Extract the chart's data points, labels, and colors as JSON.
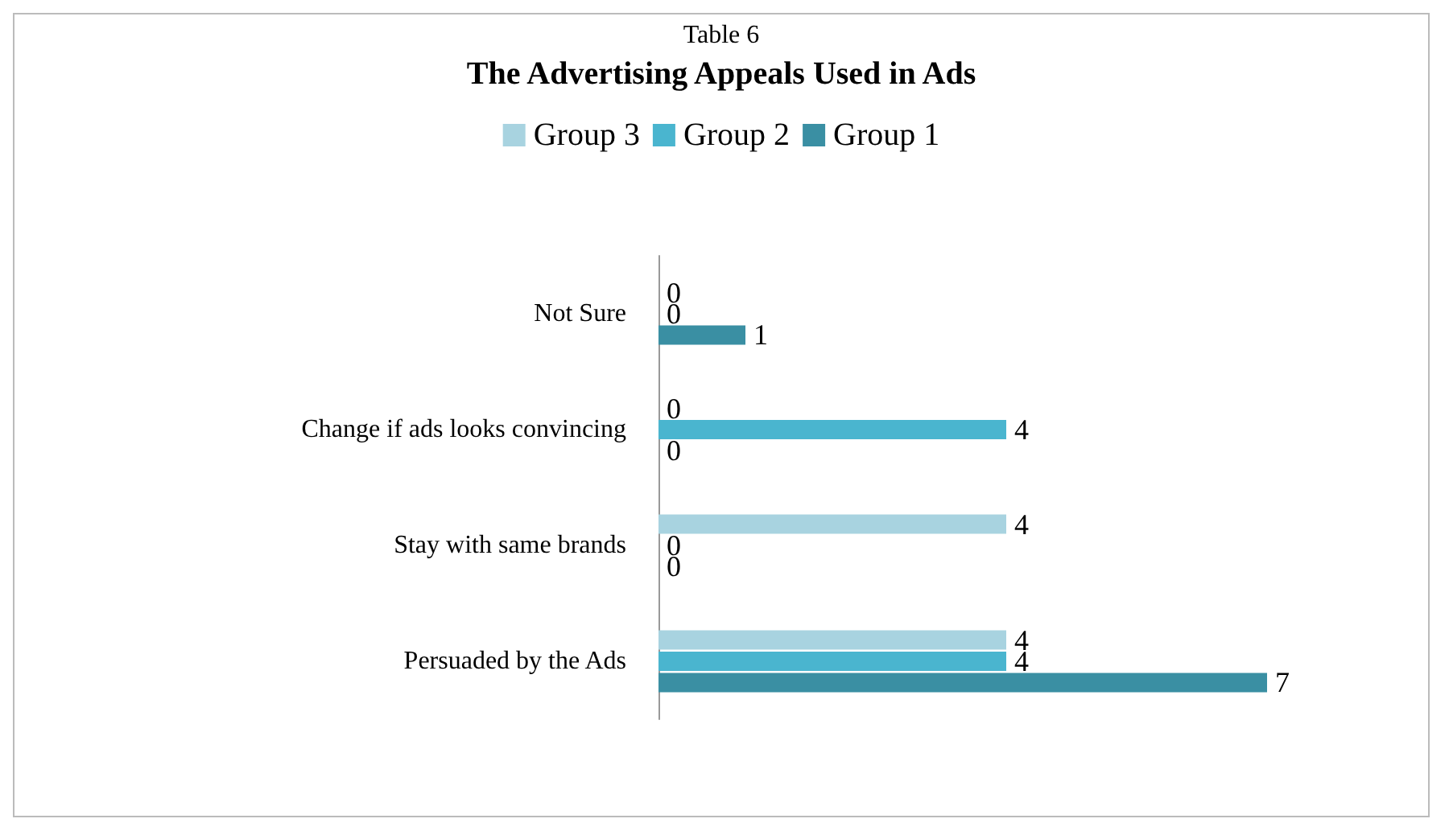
{
  "chart_data": {
    "type": "bar",
    "orientation": "horizontal",
    "title": "The Advertising Appeals Used in Ads",
    "annotations": [
      "Table 6"
    ],
    "categories": [
      "Not Sure",
      "Change if ads looks convincing",
      "Stay with same brands",
      "Persuaded by the Ads"
    ],
    "series": [
      {
        "name": "Group 3",
        "color": "#a8d3e0",
        "values": [
          0,
          0,
          4,
          4
        ]
      },
      {
        "name": "Group 2",
        "color": "#4ab5cf",
        "values": [
          0,
          4,
          0,
          4
        ]
      },
      {
        "name": "Group 1",
        "color": "#3a8fa3",
        "values": [
          1,
          0,
          0,
          7
        ]
      }
    ],
    "data_labels": true,
    "legend": "top",
    "tick_labels": "y"
  }
}
